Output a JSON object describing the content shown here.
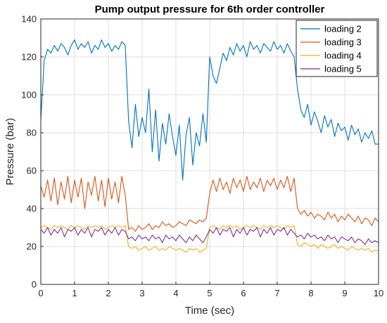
{
  "chart_data": {
    "type": "line",
    "title": "Pump output pressure for 6th order controller",
    "xlabel": "Time (sec)",
    "ylabel": "Pressure (bar)",
    "xlim": [
      0,
      10
    ],
    "ylim": [
      0,
      140
    ],
    "xticks": [
      0,
      1,
      2,
      3,
      4,
      5,
      6,
      7,
      8,
      9,
      10
    ],
    "yticks": [
      0,
      20,
      40,
      60,
      80,
      100,
      120,
      140
    ],
    "grid": true,
    "legend_position": "top-right",
    "x": [
      0.0,
      0.1,
      0.2,
      0.3,
      0.4,
      0.5,
      0.6,
      0.7,
      0.8,
      0.9,
      1.0,
      1.1,
      1.2,
      1.3,
      1.4,
      1.5,
      1.6,
      1.7,
      1.8,
      1.9,
      2.0,
      2.1,
      2.2,
      2.3,
      2.4,
      2.5,
      2.6,
      2.7,
      2.8,
      2.9,
      3.0,
      3.1,
      3.2,
      3.3,
      3.4,
      3.5,
      3.6,
      3.7,
      3.8,
      3.9,
      4.0,
      4.1,
      4.2,
      4.3,
      4.4,
      4.5,
      4.6,
      4.7,
      4.8,
      4.9,
      5.0,
      5.1,
      5.2,
      5.3,
      5.4,
      5.5,
      5.6,
      5.7,
      5.8,
      5.9,
      6.0,
      6.1,
      6.2,
      6.3,
      6.4,
      6.5,
      6.6,
      6.7,
      6.8,
      6.9,
      7.0,
      7.1,
      7.2,
      7.3,
      7.4,
      7.5,
      7.6,
      7.7,
      7.8,
      7.9,
      8.0,
      8.1,
      8.2,
      8.3,
      8.4,
      8.5,
      8.6,
      8.7,
      8.8,
      8.9,
      9.0,
      9.1,
      9.2,
      9.3,
      9.4,
      9.5,
      9.6,
      9.7,
      9.8,
      9.9,
      10.0
    ],
    "series": [
      {
        "name": "loading 2",
        "color": "#0072BD",
        "values": [
          87,
          118,
          124,
          122,
          126,
          123,
          127,
          125,
          121,
          126,
          129,
          124,
          127,
          125,
          128,
          122,
          126,
          124,
          129,
          125,
          127,
          123,
          126,
          124,
          128,
          126,
          86,
          72,
          95,
          78,
          88,
          80,
          103,
          70,
          92,
          65,
          85,
          74,
          90,
          78,
          68,
          84,
          55,
          79,
          88,
          63,
          80,
          73,
          90,
          75,
          120,
          110,
          106,
          114,
          122,
          118,
          125,
          121,
          127,
          123,
          126,
          120,
          128,
          124,
          126,
          122,
          127,
          125,
          123,
          128,
          124,
          126,
          122,
          127,
          123,
          120,
          103,
          92,
          88,
          95,
          84,
          91,
          86,
          80,
          89,
          83,
          87,
          78,
          85,
          81,
          83,
          76,
          84,
          79,
          82,
          75,
          80,
          77,
          81,
          74,
          74
        ]
      },
      {
        "name": "loading 3",
        "color": "#D95319",
        "values": [
          52,
          46,
          55,
          44,
          56,
          42,
          54,
          45,
          57,
          43,
          55,
          46,
          56,
          40,
          54,
          47,
          57,
          44,
          55,
          41,
          56,
          45,
          54,
          43,
          57,
          47,
          29,
          30,
          28,
          31,
          29,
          30,
          32,
          29,
          31,
          30,
          33,
          31,
          32,
          30,
          31,
          33,
          32,
          31,
          34,
          33,
          32,
          34,
          33,
          35,
          48,
          55,
          49,
          56,
          50,
          54,
          48,
          56,
          51,
          55,
          49,
          57,
          50,
          54,
          51,
          56,
          49,
          55,
          52,
          56,
          50,
          55,
          51,
          57,
          49,
          56,
          40,
          37,
          39,
          36,
          38,
          35,
          37,
          36,
          34,
          38,
          35,
          37,
          33,
          36,
          34,
          37,
          35,
          33,
          36,
          32,
          35,
          34,
          31,
          35,
          33
        ]
      },
      {
        "name": "loading 4",
        "color": "#EDB120",
        "values": [
          30,
          31,
          30,
          29,
          31,
          30,
          31,
          30,
          29,
          31,
          30,
          31,
          30,
          29,
          31,
          30,
          31,
          30,
          31,
          29,
          30,
          31,
          30,
          31,
          30,
          31,
          20,
          19,
          20,
          18,
          19,
          20,
          18,
          19,
          20,
          18,
          19,
          18,
          20,
          19,
          18,
          19,
          18,
          17,
          19,
          18,
          19,
          17,
          18,
          19,
          30,
          31,
          30,
          29,
          31,
          30,
          31,
          30,
          31,
          29,
          30,
          31,
          30,
          31,
          30,
          29,
          31,
          30,
          31,
          30,
          31,
          30,
          29,
          31,
          30,
          31,
          21,
          20,
          22,
          21,
          20,
          21,
          19,
          21,
          20,
          19,
          20,
          21,
          19,
          20,
          19,
          18,
          20,
          19,
          18,
          19,
          18,
          19,
          17,
          18,
          18
        ]
      },
      {
        "name": "loading 5",
        "color": "#7E2F8E",
        "values": [
          29,
          27,
          30,
          26,
          29,
          27,
          30,
          25,
          29,
          28,
          30,
          26,
          29,
          27,
          30,
          25,
          29,
          28,
          30,
          26,
          29,
          27,
          30,
          26,
          29,
          28,
          24,
          25,
          23,
          26,
          24,
          25,
          23,
          26,
          24,
          25,
          22,
          26,
          24,
          25,
          23,
          26,
          24,
          22,
          25,
          23,
          26,
          24,
          22,
          25,
          29,
          27,
          30,
          26,
          29,
          28,
          30,
          25,
          29,
          27,
          30,
          26,
          29,
          28,
          30,
          25,
          29,
          27,
          30,
          26,
          29,
          28,
          30,
          26,
          29,
          27,
          25,
          26,
          24,
          27,
          25,
          26,
          24,
          25,
          23,
          26,
          24,
          25,
          22,
          25,
          24,
          23,
          25,
          22,
          24,
          23,
          21,
          24,
          22,
          23,
          22
        ]
      }
    ]
  }
}
